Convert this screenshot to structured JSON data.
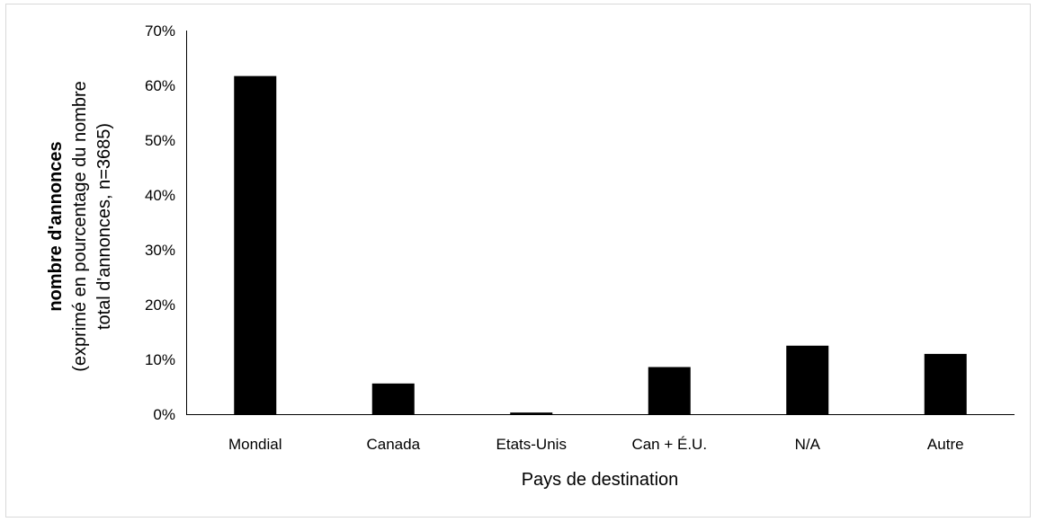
{
  "chart_data": {
    "type": "bar",
    "categories": [
      "Mondial",
      "Canada",
      "Etats-Unis",
      "Can + É.U.",
      "N/A",
      "Autre"
    ],
    "values": [
      61.7,
      5.6,
      0.3,
      8.6,
      12.5,
      11.0
    ],
    "unit": "%",
    "title": "",
    "xlabel": "Pays de destination",
    "ylabel_lines": [
      "nombre d'annonces",
      "(exprimé en pourcentage du nombre",
      "total d'annonces, n=3685)"
    ],
    "ylim": [
      0,
      70
    ],
    "yticks": [
      "0%",
      "10%",
      "20%",
      "30%",
      "40%",
      "50%",
      "60%",
      "70%"
    ],
    "ytick_values": [
      0,
      10,
      20,
      30,
      40,
      50,
      60,
      70
    ],
    "bar_color": "#000000",
    "grid": false,
    "legend": "none"
  }
}
